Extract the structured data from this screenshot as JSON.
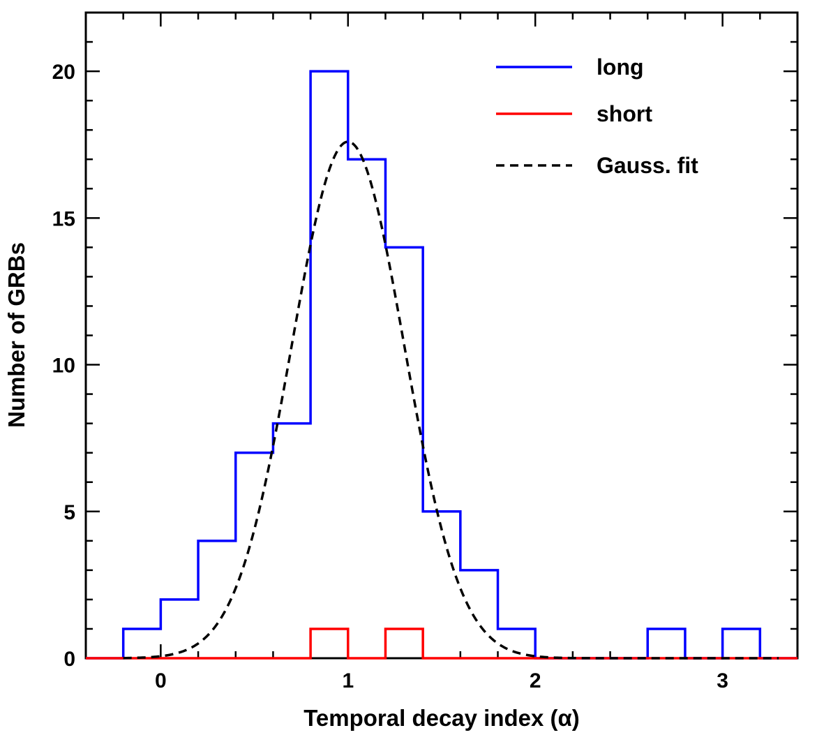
{
  "chart_data": {
    "type": "histogram",
    "xlabel": "Temporal decay index (α)",
    "ylabel": "Number of GRBs",
    "xlim": [
      -0.4,
      3.4
    ],
    "ylim": [
      0,
      22
    ],
    "xticks": [
      0,
      1,
      2,
      3
    ],
    "yticks": [
      0,
      5,
      10,
      15,
      20
    ],
    "bin_edges": [
      -0.2,
      0.0,
      0.2,
      0.4,
      0.6,
      0.8,
      1.0,
      1.2,
      1.4,
      1.6,
      1.8,
      2.0,
      2.2,
      2.4,
      2.6,
      2.8,
      3.0,
      3.2
    ],
    "series": [
      {
        "name": "long",
        "color": "#0000ff",
        "style": "step",
        "values": [
          1,
          2,
          4,
          7,
          8,
          20,
          17,
          14,
          5,
          3,
          1,
          0,
          0,
          0,
          1,
          0,
          1
        ]
      },
      {
        "name": "short",
        "color": "#ff0000",
        "style": "step",
        "values": [
          0,
          0,
          0,
          0,
          0,
          1,
          0,
          1,
          0,
          0,
          0,
          0,
          0,
          0,
          0,
          0,
          0
        ]
      },
      {
        "name": "Gauss. fit",
        "color": "#000000",
        "style": "dashed",
        "amplitude": 17.6,
        "mean": 1.0,
        "sigma": 0.3
      }
    ],
    "legend_position": "top-right",
    "grid": false
  }
}
